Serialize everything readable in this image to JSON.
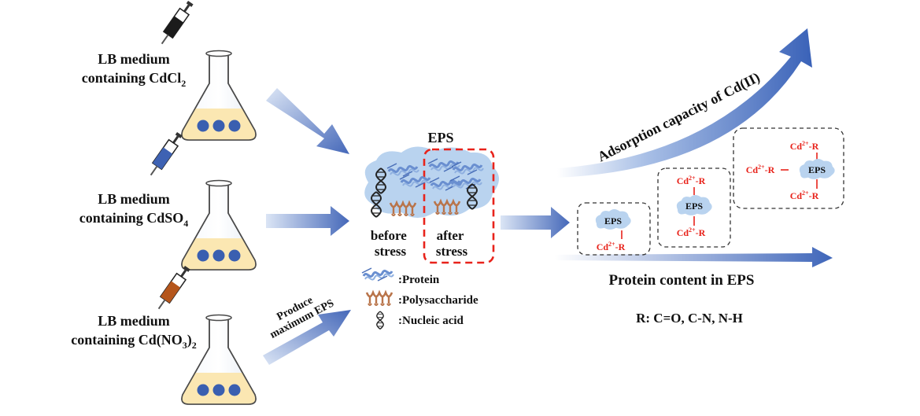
{
  "flasks": [
    {
      "line1": "LB medium",
      "line2_base": "containing CdCl",
      "line2_sub": "2",
      "line2_tail": "",
      "syringe_color": "#1b1b1b"
    },
    {
      "line1": "LB medium",
      "line2_base": "containing CdSO",
      "line2_sub": "4",
      "line2_tail": "",
      "syringe_color": "#3e62b3"
    },
    {
      "line1": "LB medium",
      "line2_base": "containing Cd(NO",
      "line2_sub": "3",
      "line2_tail": ")",
      "line2_sub2": "2",
      "syringe_color": "#b5561c"
    }
  ],
  "produce_label": {
    "line1": "Produce",
    "line2": "maximum EPS"
  },
  "eps_cloud": {
    "title": "EPS",
    "before_line1": "before",
    "before_line2": "stress",
    "after_line1": "after",
    "after_line2": "stress"
  },
  "legend": [
    {
      "icon": "protein-icon",
      "label": ":Protein"
    },
    {
      "icon": "polysaccharide-icon",
      "label": ":Polysaccharide"
    },
    {
      "icon": "nucleic-acid-icon",
      "label": ":Nucleic acid"
    }
  ],
  "adsorption_label": "Adsorption capacity of Cd(II)",
  "protein_label": "Protein content in EPS",
  "r_label": "R: C=O, C-N, N-H",
  "complexes": [
    {
      "eps": "EPS",
      "bonds": [
        {
          "cd": "Cd",
          "sup": "2+",
          "r": "-R"
        }
      ]
    },
    {
      "eps": "EPS",
      "bonds": [
        {
          "cd": "Cd",
          "sup": "2+",
          "r": "-R"
        },
        {
          "cd": "Cd",
          "sup": "2+",
          "r": "-R"
        }
      ]
    },
    {
      "eps": "EPS",
      "bonds": [
        {
          "cd": "Cd",
          "sup": "2+",
          "r": "-R"
        },
        {
          "cd": "Cd",
          "sup": "2+",
          "r": "-R"
        },
        {
          "cd": "Cd",
          "sup": "2+",
          "r": "-R"
        }
      ]
    }
  ],
  "colors": {
    "arrow": "#4f74c4",
    "flask_liquid": "#fbe7b2",
    "bead": "#3a5fb0",
    "cloud": "#b9d3ef",
    "cd": "#e8231b",
    "dashed_red": "#e8231b"
  }
}
